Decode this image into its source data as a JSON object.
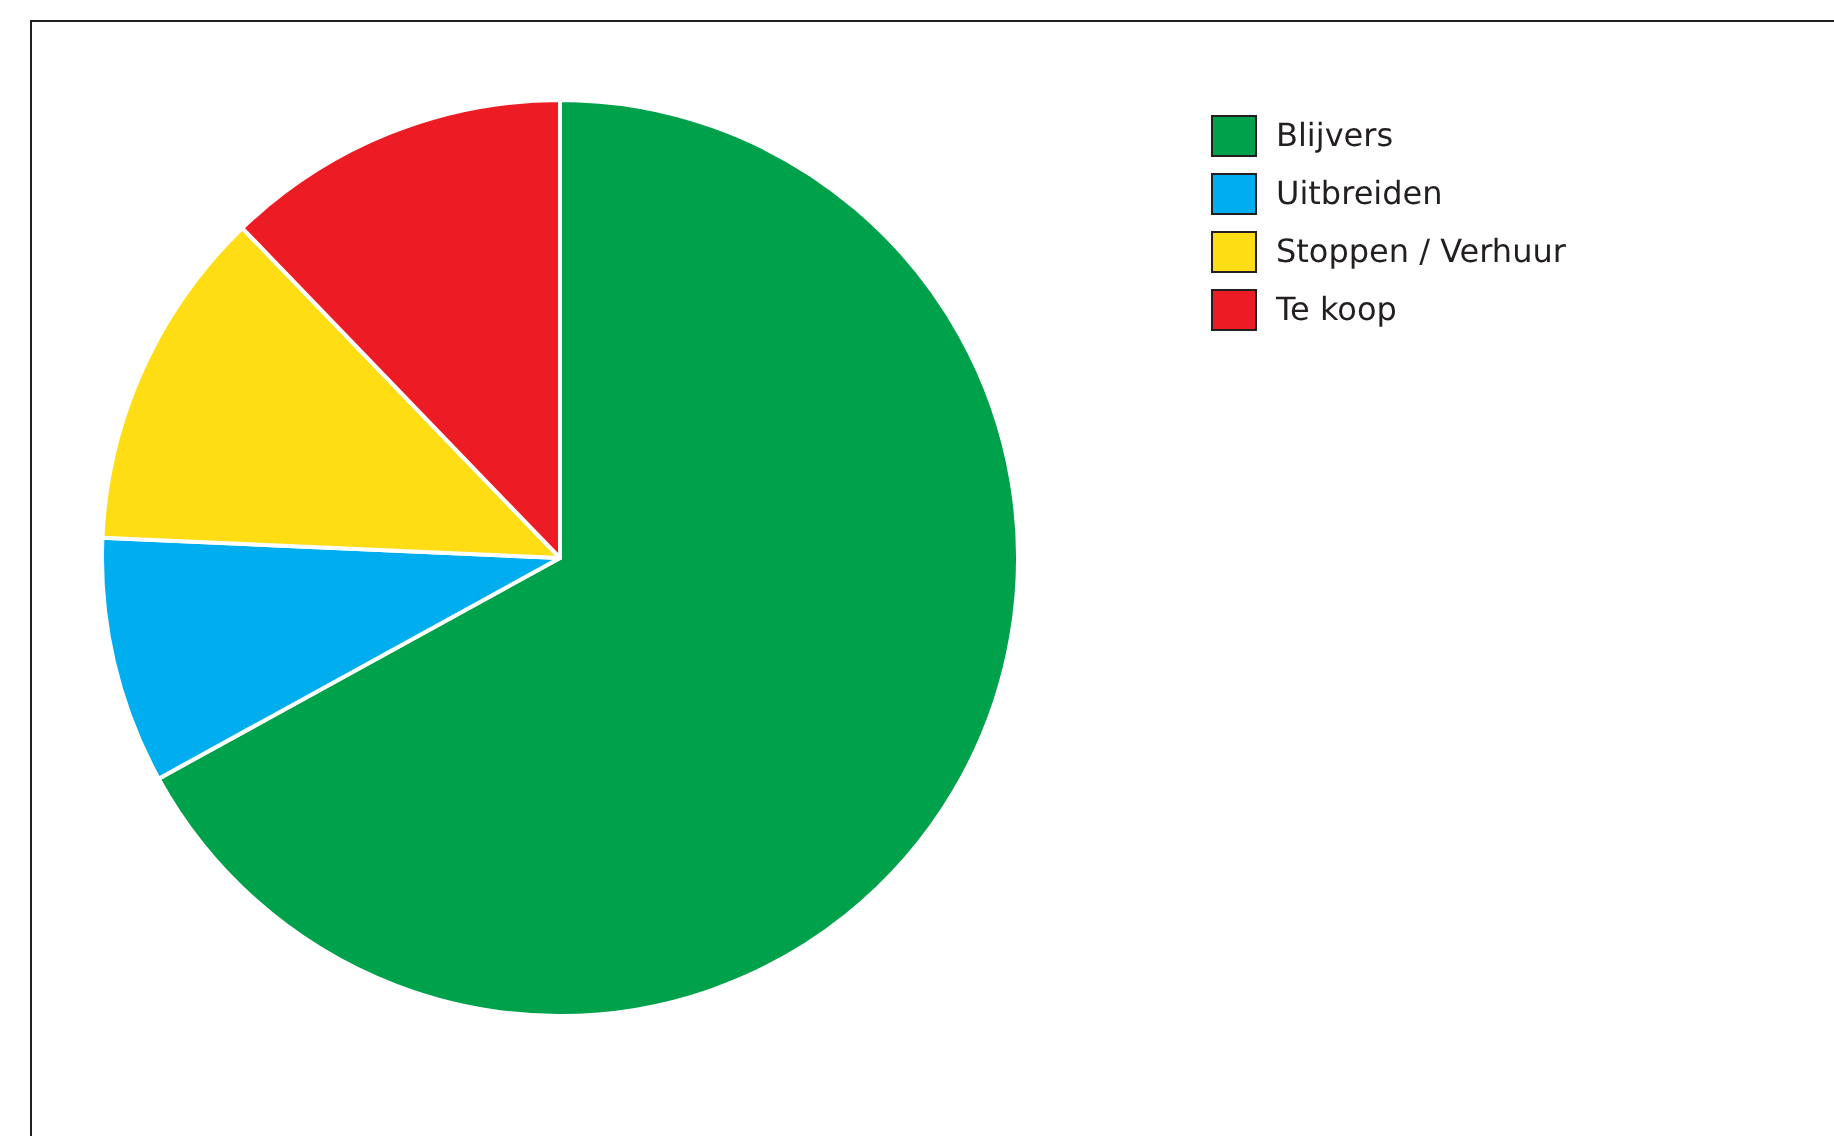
{
  "chart_data": {
    "type": "pie",
    "categories": [
      "Blijvers",
      "Uitbreiden",
      "Stoppen / Verhuur",
      "Te koop"
    ],
    "values": [
      67,
      8.7,
      12.1,
      12.2
    ],
    "colors": [
      "#00a14b",
      "#00aeef",
      "#ffdd15",
      "#ed1c24"
    ],
    "legend": "top right"
  }
}
